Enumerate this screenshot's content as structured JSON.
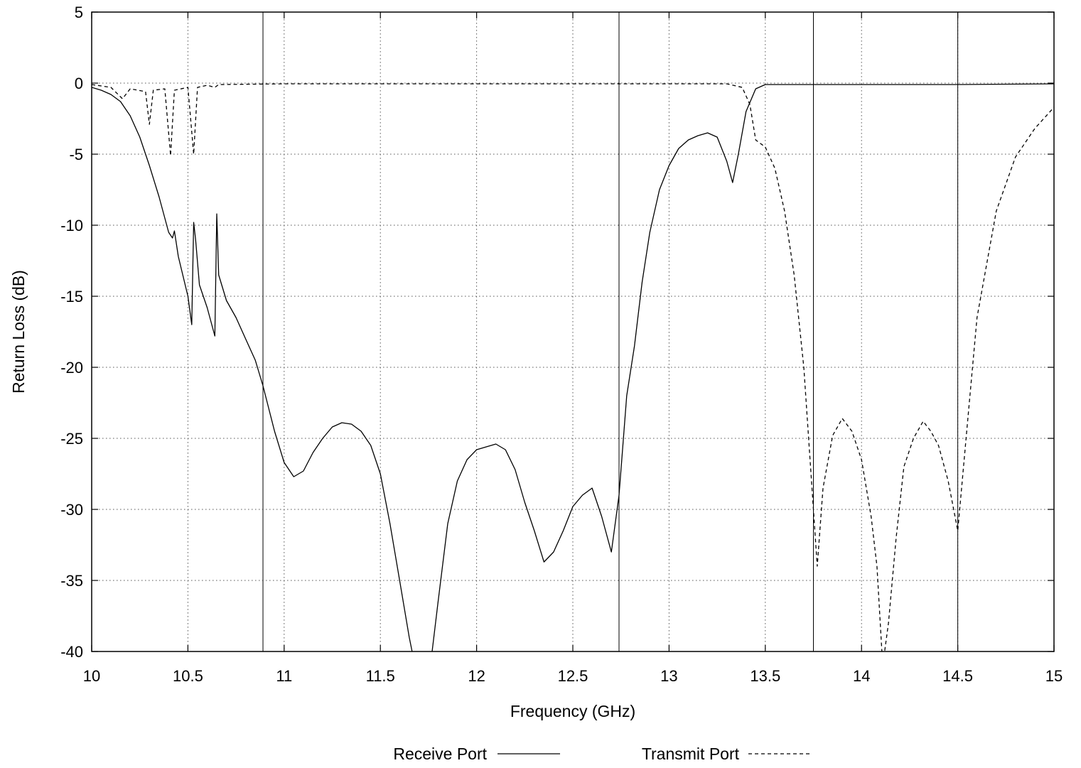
{
  "chart_data": {
    "type": "line",
    "title": "",
    "xlabel": "Frequency (GHz)",
    "ylabel": "Return Loss (dB)",
    "xlim": [
      10,
      15
    ],
    "ylim": [
      -40,
      5
    ],
    "xticks": [
      10,
      10.5,
      11,
      11.5,
      12,
      12.5,
      13,
      13.5,
      14,
      14.5,
      15
    ],
    "xtick_labels": [
      "10",
      "10.5",
      "11",
      "11.5",
      "12",
      "12.5",
      "13",
      "13.5",
      "14",
      "14.5",
      "15"
    ],
    "yticks": [
      5,
      0,
      -5,
      -10,
      -15,
      -20,
      -25,
      -30,
      -35,
      -40
    ],
    "ytick_labels": [
      "5",
      "0",
      "-5",
      "-10",
      "-15",
      "-20",
      "-25",
      "-30",
      "-35",
      "-40"
    ],
    "grid": true,
    "legend_position": "bottom",
    "marker_lines_x": [
      10.89,
      12.74,
      13.75,
      14.5
    ],
    "series": [
      {
        "name": "Receive Port",
        "style": "solid",
        "points": [
          [
            10.0,
            -0.3
          ],
          [
            10.05,
            -0.5
          ],
          [
            10.1,
            -0.8
          ],
          [
            10.15,
            -1.3
          ],
          [
            10.2,
            -2.3
          ],
          [
            10.25,
            -3.8
          ],
          [
            10.3,
            -5.8
          ],
          [
            10.35,
            -8.0
          ],
          [
            10.4,
            -10.5
          ],
          [
            10.42,
            -10.9
          ],
          [
            10.43,
            -10.4
          ],
          [
            10.45,
            -12.2
          ],
          [
            10.5,
            -15.0
          ],
          [
            10.52,
            -17.0
          ],
          [
            10.53,
            -9.8
          ],
          [
            10.54,
            -11.0
          ],
          [
            10.56,
            -14.2
          ],
          [
            10.6,
            -15.8
          ],
          [
            10.64,
            -17.8
          ],
          [
            10.65,
            -9.2
          ],
          [
            10.66,
            -13.5
          ],
          [
            10.7,
            -15.3
          ],
          [
            10.75,
            -16.5
          ],
          [
            10.8,
            -18.0
          ],
          [
            10.85,
            -19.5
          ],
          [
            10.89,
            -21.3
          ],
          [
            10.95,
            -24.5
          ],
          [
            11.0,
            -26.7
          ],
          [
            11.05,
            -27.7
          ],
          [
            11.1,
            -27.3
          ],
          [
            11.15,
            -26.0
          ],
          [
            11.2,
            -25.0
          ],
          [
            11.25,
            -24.2
          ],
          [
            11.3,
            -23.9
          ],
          [
            11.35,
            -24.0
          ],
          [
            11.4,
            -24.5
          ],
          [
            11.45,
            -25.5
          ],
          [
            11.5,
            -27.5
          ],
          [
            11.55,
            -31.0
          ],
          [
            11.6,
            -35.0
          ],
          [
            11.65,
            -39.0
          ],
          [
            11.68,
            -41.0
          ],
          [
            11.76,
            -41.0
          ],
          [
            11.8,
            -36.5
          ],
          [
            11.85,
            -31.0
          ],
          [
            11.9,
            -28.0
          ],
          [
            11.95,
            -26.5
          ],
          [
            12.0,
            -25.8
          ],
          [
            12.05,
            -25.6
          ],
          [
            12.1,
            -25.4
          ],
          [
            12.15,
            -25.8
          ],
          [
            12.2,
            -27.2
          ],
          [
            12.25,
            -29.5
          ],
          [
            12.3,
            -31.5
          ],
          [
            12.35,
            -33.7
          ],
          [
            12.4,
            -33.0
          ],
          [
            12.45,
            -31.5
          ],
          [
            12.5,
            -29.8
          ],
          [
            12.55,
            -29.0
          ],
          [
            12.6,
            -28.5
          ],
          [
            12.65,
            -30.5
          ],
          [
            12.7,
            -33.0
          ],
          [
            12.74,
            -29.0
          ],
          [
            12.78,
            -22.0
          ],
          [
            12.82,
            -18.5
          ],
          [
            12.86,
            -14.0
          ],
          [
            12.9,
            -10.5
          ],
          [
            12.95,
            -7.5
          ],
          [
            13.0,
            -5.8
          ],
          [
            13.05,
            -4.6
          ],
          [
            13.1,
            -4.0
          ],
          [
            13.15,
            -3.7
          ],
          [
            13.2,
            -3.5
          ],
          [
            13.25,
            -3.8
          ],
          [
            13.3,
            -5.5
          ],
          [
            13.33,
            -7.0
          ],
          [
            13.36,
            -5.0
          ],
          [
            13.4,
            -2.0
          ],
          [
            13.45,
            -0.4
          ],
          [
            13.5,
            -0.1
          ],
          [
            13.75,
            -0.1
          ],
          [
            14.0,
            -0.1
          ],
          [
            14.5,
            -0.1
          ],
          [
            15.0,
            -0.05
          ]
        ]
      },
      {
        "name": "Transmit Port",
        "style": "dashed",
        "points": [
          [
            10.0,
            -0.1
          ],
          [
            10.1,
            -0.3
          ],
          [
            10.16,
            -1.1
          ],
          [
            10.2,
            -0.4
          ],
          [
            10.28,
            -0.6
          ],
          [
            10.3,
            -2.9
          ],
          [
            10.32,
            -0.5
          ],
          [
            10.38,
            -0.4
          ],
          [
            10.41,
            -5.1
          ],
          [
            10.43,
            -0.5
          ],
          [
            10.5,
            -0.3
          ],
          [
            10.53,
            -5.0
          ],
          [
            10.55,
            -0.3
          ],
          [
            10.6,
            -0.15
          ],
          [
            10.64,
            -0.3
          ],
          [
            10.66,
            -0.1
          ],
          [
            11.0,
            -0.05
          ],
          [
            11.5,
            -0.05
          ],
          [
            12.0,
            -0.05
          ],
          [
            12.5,
            -0.05
          ],
          [
            13.0,
            -0.05
          ],
          [
            13.3,
            -0.05
          ],
          [
            13.38,
            -0.3
          ],
          [
            13.42,
            -1.5
          ],
          [
            13.45,
            -4.0
          ],
          [
            13.5,
            -4.5
          ],
          [
            13.55,
            -6.0
          ],
          [
            13.6,
            -9.0
          ],
          [
            13.65,
            -13.5
          ],
          [
            13.7,
            -20.0
          ],
          [
            13.74,
            -28.0
          ],
          [
            13.77,
            -34.0
          ],
          [
            13.8,
            -28.5
          ],
          [
            13.85,
            -24.8
          ],
          [
            13.9,
            -23.6
          ],
          [
            13.95,
            -24.5
          ],
          [
            14.0,
            -26.5
          ],
          [
            14.05,
            -30.5
          ],
          [
            14.08,
            -34.0
          ],
          [
            14.11,
            -41.0
          ],
          [
            14.14,
            -38.0
          ],
          [
            14.18,
            -32.0
          ],
          [
            14.22,
            -27.0
          ],
          [
            14.27,
            -25.0
          ],
          [
            14.32,
            -23.8
          ],
          [
            14.36,
            -24.5
          ],
          [
            14.4,
            -25.5
          ],
          [
            14.45,
            -28.0
          ],
          [
            14.5,
            -31.5
          ],
          [
            14.55,
            -24.0
          ],
          [
            14.6,
            -16.5
          ],
          [
            14.7,
            -9.0
          ],
          [
            14.8,
            -5.2
          ],
          [
            14.9,
            -3.2
          ],
          [
            15.0,
            -1.7
          ]
        ]
      }
    ]
  }
}
